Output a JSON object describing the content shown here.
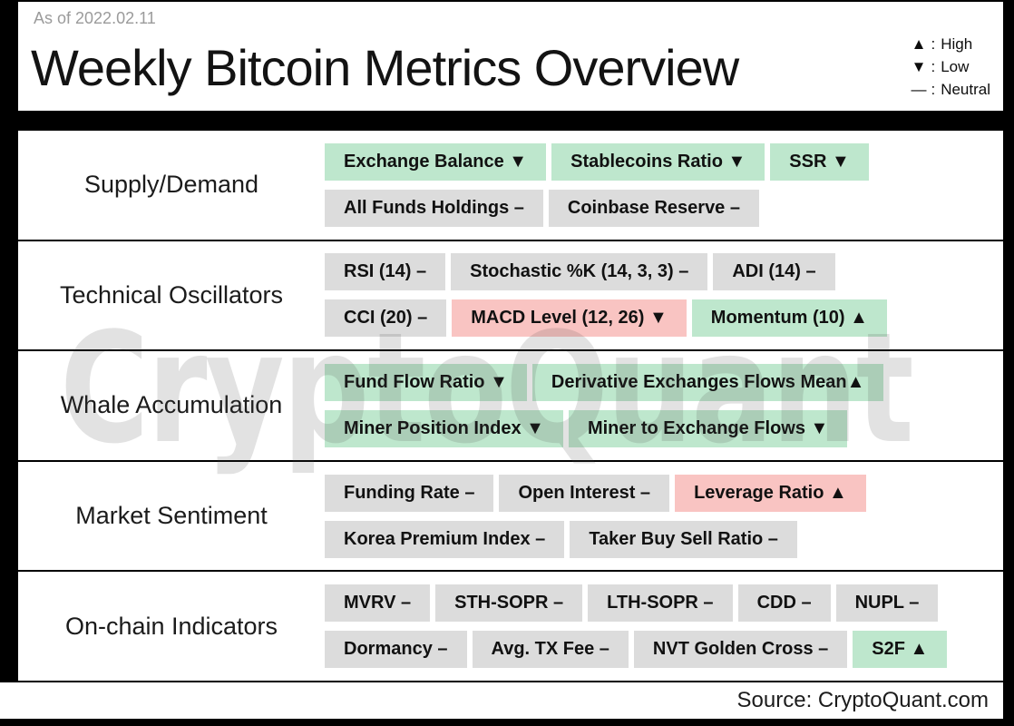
{
  "page": {
    "as_of": "As of 2022.02.11",
    "title": "Weekly Bitcoin Metrics Overview",
    "watermark": "CryptoQuant",
    "source": "Source: CryptoQuant.com",
    "background": "#000000"
  },
  "chart_data": {
    "type": "table",
    "title": "Weekly Bitcoin Metrics Overview",
    "as_of_date": "2022.02.11",
    "legend_colon": ":",
    "legend": [
      {
        "symbol": "▲",
        "label": "High"
      },
      {
        "symbol": "▼",
        "label": "Low"
      },
      {
        "symbol": "—",
        "label": "Neutral"
      }
    ],
    "palette": {
      "positive": "#bee7cd",
      "negative": "#f9c4c2",
      "neutral": "#dcdcdc",
      "row_bg": "#ffffff",
      "frame": "#000000",
      "pill_text": "#111111"
    },
    "rows": [
      {
        "category": "Supply/Demand",
        "lines": [
          [
            {
              "text": "Exchange Balance ▼",
              "metric": "Exchange Balance",
              "signal": "Low",
              "tone": "positive"
            },
            {
              "text": "Stablecoins Ratio ▼",
              "metric": "Stablecoins Ratio",
              "signal": "Low",
              "tone": "positive"
            },
            {
              "text": "SSR ▼",
              "metric": "SSR",
              "signal": "Low",
              "tone": "positive"
            }
          ],
          [
            {
              "text": "All Funds Holdings –",
              "metric": "All Funds Holdings",
              "signal": "Neutral",
              "tone": "neutral"
            },
            {
              "text": "Coinbase Reserve –",
              "metric": "Coinbase Reserve",
              "signal": "Neutral",
              "tone": "neutral"
            }
          ]
        ]
      },
      {
        "category": "Technical Oscillators",
        "lines": [
          [
            {
              "text": "RSI (14) –",
              "metric": "RSI (14)",
              "signal": "Neutral",
              "tone": "neutral"
            },
            {
              "text": "Stochastic %K (14, 3, 3) –",
              "metric": "Stochastic %K (14, 3, 3)",
              "signal": "Neutral",
              "tone": "neutral"
            },
            {
              "text": "ADI (14) –",
              "metric": "ADI (14)",
              "signal": "Neutral",
              "tone": "neutral"
            }
          ],
          [
            {
              "text": "CCI (20) –",
              "metric": "CCI (20)",
              "signal": "Neutral",
              "tone": "neutral"
            },
            {
              "text": "MACD Level (12, 26) ▼",
              "metric": "MACD Level (12, 26)",
              "signal": "Low",
              "tone": "negative"
            },
            {
              "text": "Momentum (10) ▲",
              "metric": "Momentum (10)",
              "signal": "High",
              "tone": "positive"
            }
          ]
        ]
      },
      {
        "category": "Whale Accumulation",
        "lines": [
          [
            {
              "text": "Fund Flow Ratio ▼",
              "metric": "Fund Flow Ratio",
              "signal": "Low",
              "tone": "positive"
            },
            {
              "text": "Derivative Exchanges Flows Mean▲",
              "metric": "Derivative Exchanges Flows Mean",
              "signal": "High",
              "tone": "positive"
            }
          ],
          [
            {
              "text": "Miner Position Index ▼",
              "metric": "Miner Position Index",
              "signal": "Low",
              "tone": "positive"
            },
            {
              "text": "Miner to Exchange Flows ▼",
              "metric": "Miner to Exchange Flows",
              "signal": "Low",
              "tone": "positive"
            }
          ]
        ]
      },
      {
        "category": "Market Sentiment",
        "lines": [
          [
            {
              "text": "Funding Rate –",
              "metric": "Funding Rate",
              "signal": "Neutral",
              "tone": "neutral"
            },
            {
              "text": "Open Interest –",
              "metric": "Open Interest",
              "signal": "Neutral",
              "tone": "neutral"
            },
            {
              "text": "Leverage Ratio ▲",
              "metric": "Leverage Ratio",
              "signal": "High",
              "tone": "negative"
            }
          ],
          [
            {
              "text": "Korea Premium Index –",
              "metric": "Korea Premium Index",
              "signal": "Neutral",
              "tone": "neutral"
            },
            {
              "text": "Taker Buy Sell Ratio –",
              "metric": "Taker Buy Sell Ratio",
              "signal": "Neutral",
              "tone": "neutral"
            }
          ]
        ]
      },
      {
        "category": "On-chain Indicators",
        "lines": [
          [
            {
              "text": "MVRV –",
              "metric": "MVRV",
              "signal": "Neutral",
              "tone": "neutral"
            },
            {
              "text": "STH-SOPR –",
              "metric": "STH-SOPR",
              "signal": "Neutral",
              "tone": "neutral"
            },
            {
              "text": "LTH-SOPR –",
              "metric": "LTH-SOPR",
              "signal": "Neutral",
              "tone": "neutral"
            },
            {
              "text": "CDD –",
              "metric": "CDD",
              "signal": "Neutral",
              "tone": "neutral"
            },
            {
              "text": "NUPL –",
              "metric": "NUPL",
              "signal": "Neutral",
              "tone": "neutral"
            }
          ],
          [
            {
              "text": "Dormancy –",
              "metric": "Dormancy",
              "signal": "Neutral",
              "tone": "neutral"
            },
            {
              "text": "Avg. TX Fee –",
              "metric": "Avg. TX Fee",
              "signal": "Neutral",
              "tone": "neutral"
            },
            {
              "text": "NVT Golden Cross –",
              "metric": "NVT Golden Cross",
              "signal": "Neutral",
              "tone": "neutral"
            },
            {
              "text": "S2F ▲",
              "metric": "S2F",
              "signal": "High",
              "tone": "positive"
            }
          ]
        ]
      }
    ]
  }
}
